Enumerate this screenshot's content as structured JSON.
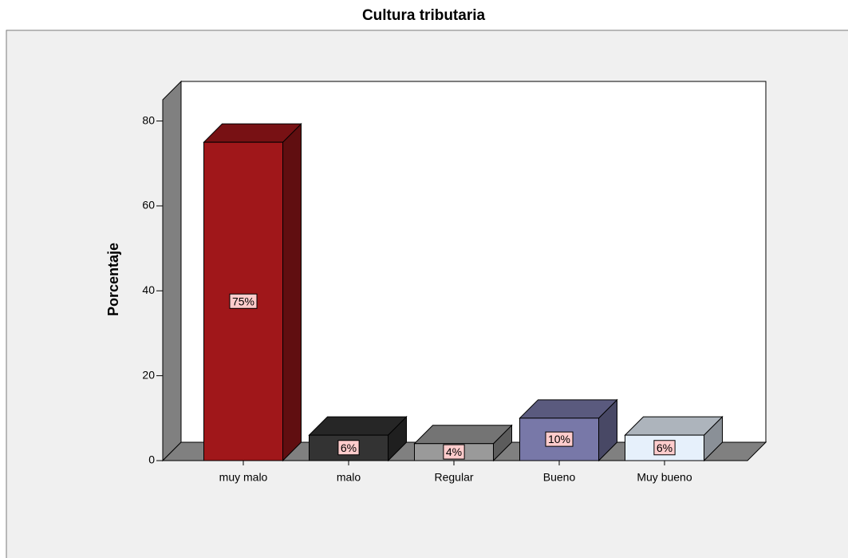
{
  "chart_data": {
    "type": "bar3d",
    "title": "Cultura tributaria",
    "y_label": "Porcentaje",
    "categories": [
      "muy malo",
      "malo",
      "Regular",
      "Bueno",
      "Muy bueno"
    ],
    "values": [
      75,
      6,
      4,
      10,
      6
    ],
    "value_labels": [
      "75%",
      "6%",
      "4%",
      "10%",
      "6%"
    ],
    "colors": [
      "#a0171a",
      "#333333",
      "#9a9a9a",
      "#7878a8",
      "#e6f0fb"
    ],
    "ylim": [
      0,
      85
    ],
    "yticks": [
      0,
      20,
      40,
      60,
      80
    ]
  }
}
